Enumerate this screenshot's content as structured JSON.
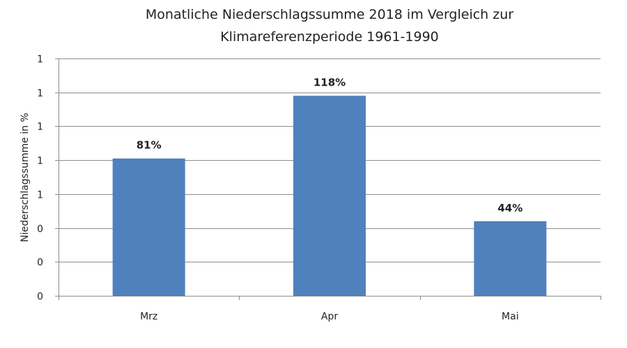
{
  "chart_data": {
    "type": "bar",
    "title": [
      "Monatliche Niederschlagssumme 2018 im Vergleich zur",
      "Klimareferenzperiode 1961-1990"
    ],
    "xlabel": "",
    "ylabel": "Niederschlagssumme in %",
    "categories": [
      "Mrz",
      "Apr",
      "Mai"
    ],
    "values": [
      0.81,
      1.18,
      0.44
    ],
    "data_labels": [
      "81%",
      "118%",
      "44%"
    ],
    "ylim": [
      0,
      1.4
    ],
    "yticks": [
      0,
      0.2,
      0.4,
      0.6,
      0.8,
      1.0,
      1.2,
      1.4
    ],
    "ytick_labels": [
      "0",
      "0",
      "0",
      "1",
      "1",
      "1",
      "1",
      "1"
    ],
    "grid": true,
    "bar_color": "#4f81bd"
  }
}
